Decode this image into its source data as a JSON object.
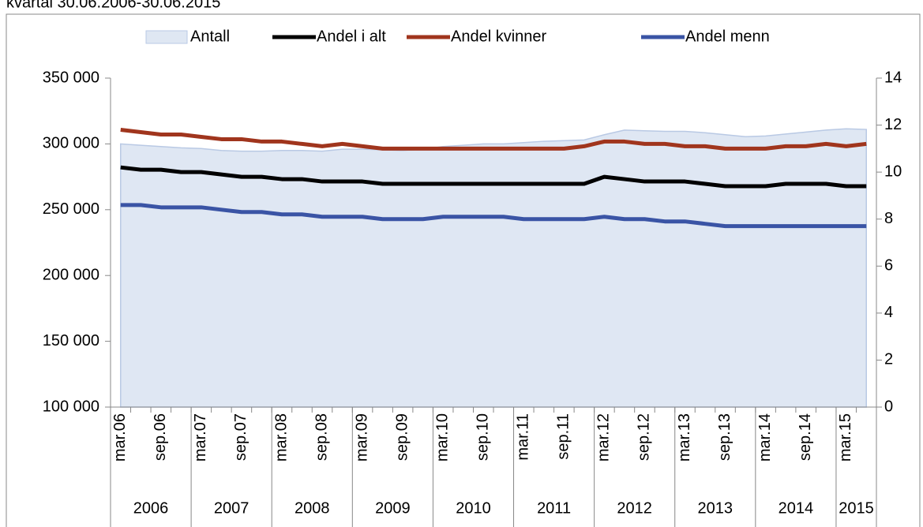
{
  "chart_data": {
    "type": "line",
    "subtitle": "kvartal 30.06.2006-30.06.2015",
    "categories": [
      "mar.06",
      null,
      "sep.06",
      null,
      "mar.07",
      null,
      "sep.07",
      null,
      "mar.08",
      null,
      "sep.08",
      null,
      "mar.09",
      null,
      "sep.09",
      null,
      "mar.10",
      null,
      "sep.10",
      null,
      "mar.11",
      null,
      "sep.11",
      null,
      "mar.12",
      null,
      "sep.12",
      null,
      "mar.13",
      null,
      "sep.13",
      null,
      "mar.14",
      null,
      "sep.14",
      null,
      "mar.15",
      null
    ],
    "year_groups": [
      {
        "label": "2006",
        "count": 4
      },
      {
        "label": "2007",
        "count": 4
      },
      {
        "label": "2008",
        "count": 4
      },
      {
        "label": "2009",
        "count": 4
      },
      {
        "label": "2010",
        "count": 4
      },
      {
        "label": "2011",
        "count": 4
      },
      {
        "label": "2012",
        "count": 4
      },
      {
        "label": "2013",
        "count": 4
      },
      {
        "label": "2014",
        "count": 4
      },
      {
        "label": "2015",
        "count": 2
      }
    ],
    "series": [
      {
        "name": "Antall",
        "kind": "area",
        "color": "#dfe7f3",
        "stroke": "#b9c9e4",
        "values": [
          300000,
          299000,
          298000,
          297000,
          296500,
          295000,
          294500,
          294500,
          295000,
          295000,
          294500,
          296000,
          296000,
          295500,
          295000,
          296000,
          298000,
          299000,
          300000,
          300000,
          301000,
          302000,
          302500,
          303000,
          307000,
          310500,
          310000,
          309500,
          309500,
          308500,
          307000,
          305500,
          306000,
          307500,
          309000,
          310500,
          311500,
          311000
        ]
      },
      {
        "name": "Andel i alt",
        "kind": "line",
        "axis": "y2",
        "color": "#000000",
        "values": [
          10.2,
          10.1,
          10.1,
          10.0,
          10.0,
          9.9,
          9.8,
          9.8,
          9.7,
          9.7,
          9.6,
          9.6,
          9.6,
          9.5,
          9.5,
          9.5,
          9.5,
          9.5,
          9.5,
          9.5,
          9.5,
          9.5,
          9.5,
          9.5,
          9.8,
          9.7,
          9.6,
          9.6,
          9.6,
          9.5,
          9.4,
          9.4,
          9.4,
          9.5,
          9.5,
          9.5,
          9.4,
          9.4
        ]
      },
      {
        "name": "Andel kvinner",
        "kind": "line",
        "axis": "y2",
        "color": "#a0351d",
        "values": [
          11.8,
          11.7,
          11.6,
          11.6,
          11.5,
          11.4,
          11.4,
          11.3,
          11.3,
          11.2,
          11.1,
          11.2,
          11.1,
          11.0,
          11.0,
          11.0,
          11.0,
          11.0,
          11.0,
          11.0,
          11.0,
          11.0,
          11.0,
          11.1,
          11.3,
          11.3,
          11.2,
          11.2,
          11.1,
          11.1,
          11.0,
          11.0,
          11.0,
          11.1,
          11.1,
          11.2,
          11.1,
          11.2
        ]
      },
      {
        "name": "Andel menn",
        "kind": "line",
        "axis": "y2",
        "color": "#3a54a5",
        "values": [
          8.6,
          8.6,
          8.5,
          8.5,
          8.5,
          8.4,
          8.3,
          8.3,
          8.2,
          8.2,
          8.1,
          8.1,
          8.1,
          8.0,
          8.0,
          8.0,
          8.1,
          8.1,
          8.1,
          8.1,
          8.0,
          8.0,
          8.0,
          8.0,
          8.1,
          8.0,
          8.0,
          7.9,
          7.9,
          7.8,
          7.7,
          7.7,
          7.7,
          7.7,
          7.7,
          7.7,
          7.7,
          7.7
        ]
      }
    ],
    "ylim": [
      100000,
      350000
    ],
    "yticks": [
      {
        "value": 100000,
        "label": "100 000"
      },
      {
        "value": 150000,
        "label": "150 000"
      },
      {
        "value": 200000,
        "label": "200 000"
      },
      {
        "value": 250000,
        "label": "250 000"
      },
      {
        "value": 300000,
        "label": "300 000"
      },
      {
        "value": 350000,
        "label": "350 000"
      }
    ],
    "y2lim": [
      0,
      14
    ],
    "y2ticks": [
      0,
      2,
      4,
      6,
      8,
      10,
      12,
      14
    ],
    "legend": "top"
  }
}
